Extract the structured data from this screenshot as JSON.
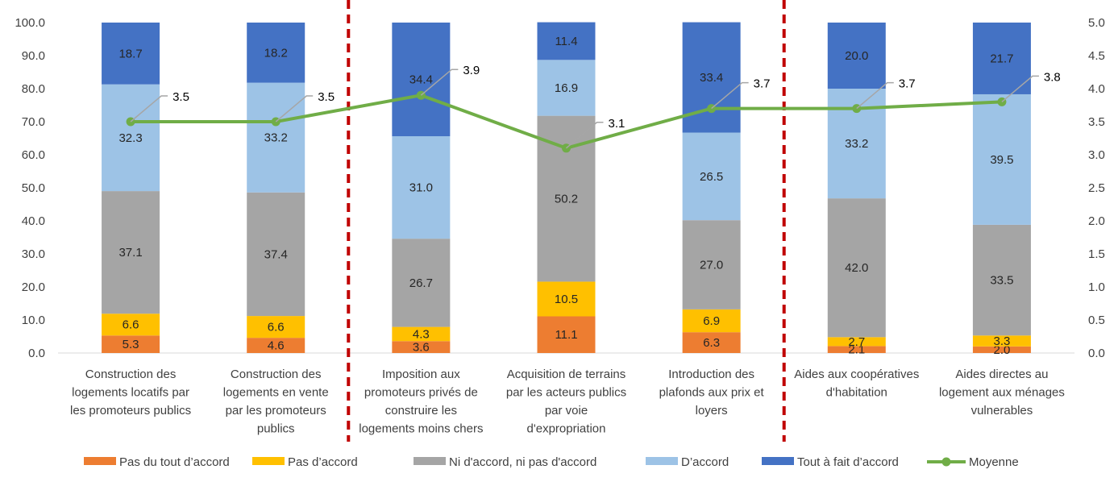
{
  "chart_data": {
    "type": "bar",
    "stacked": true,
    "categories": [
      [
        "Construction des",
        "logements locatifs par",
        "les promoteurs publics"
      ],
      [
        "Construction des",
        "logements en vente",
        "par les promoteurs",
        "publics"
      ],
      [
        "Imposition aux",
        "promoteurs privés de",
        "construire les",
        "logements moins chers"
      ],
      [
        "Acquisition de terrains",
        "par les acteurs publics",
        "par voie",
        "d'expropriation"
      ],
      [
        "Introduction des",
        "plafonds aux prix et",
        "loyers"
      ],
      [
        "Aides aux coopératives",
        "d'habitation"
      ],
      [
        "Aides directes au",
        "logement aux ménages",
        "vulnerables"
      ]
    ],
    "series": [
      {
        "name": "Pas du tout d’accord",
        "color": "#ED7D31",
        "values": [
          5.3,
          4.6,
          3.6,
          11.1,
          6.3,
          2.1,
          2.0
        ]
      },
      {
        "name": "Pas d’accord",
        "color": "#FFC000",
        "values": [
          6.6,
          6.6,
          4.3,
          10.5,
          6.9,
          2.7,
          3.3
        ]
      },
      {
        "name": "Ni d'accord, ni pas d'accord",
        "color": "#A5A5A5",
        "values": [
          37.1,
          37.4,
          26.7,
          50.2,
          27.0,
          42.0,
          33.5
        ]
      },
      {
        "name": "D’accord",
        "color": "#9DC3E6",
        "values": [
          32.3,
          33.2,
          31.0,
          16.9,
          26.5,
          33.2,
          39.5
        ]
      },
      {
        "name": "Tout à fait d’accord",
        "color": "#4472C4",
        "values": [
          18.7,
          18.2,
          34.4,
          11.4,
          33.4,
          20.0,
          21.7
        ]
      }
    ],
    "line_series": {
      "name": "Moyenne",
      "color": "#70AD47",
      "axis": "right",
      "values": [
        3.5,
        3.5,
        3.9,
        3.1,
        3.7,
        3.7,
        3.8
      ]
    },
    "y_left": {
      "min": 0,
      "max": 100,
      "step": 10,
      "ticks": [
        "0.0",
        "10.0",
        "20.0",
        "30.0",
        "40.0",
        "50.0",
        "60.0",
        "70.0",
        "80.0",
        "90.0",
        "100.0"
      ]
    },
    "y_right": {
      "min": 0,
      "max": 5,
      "step": 0.5,
      "ticks": [
        "0.0",
        "0.5",
        "1.0",
        "1.5",
        "2.0",
        "2.5",
        "3.0",
        "3.5",
        "4.0",
        "4.5",
        "5.0"
      ]
    },
    "group_separators_after": [
      1,
      4
    ],
    "separator_color": "#C00000",
    "grid": false,
    "legend_position": "bottom"
  }
}
